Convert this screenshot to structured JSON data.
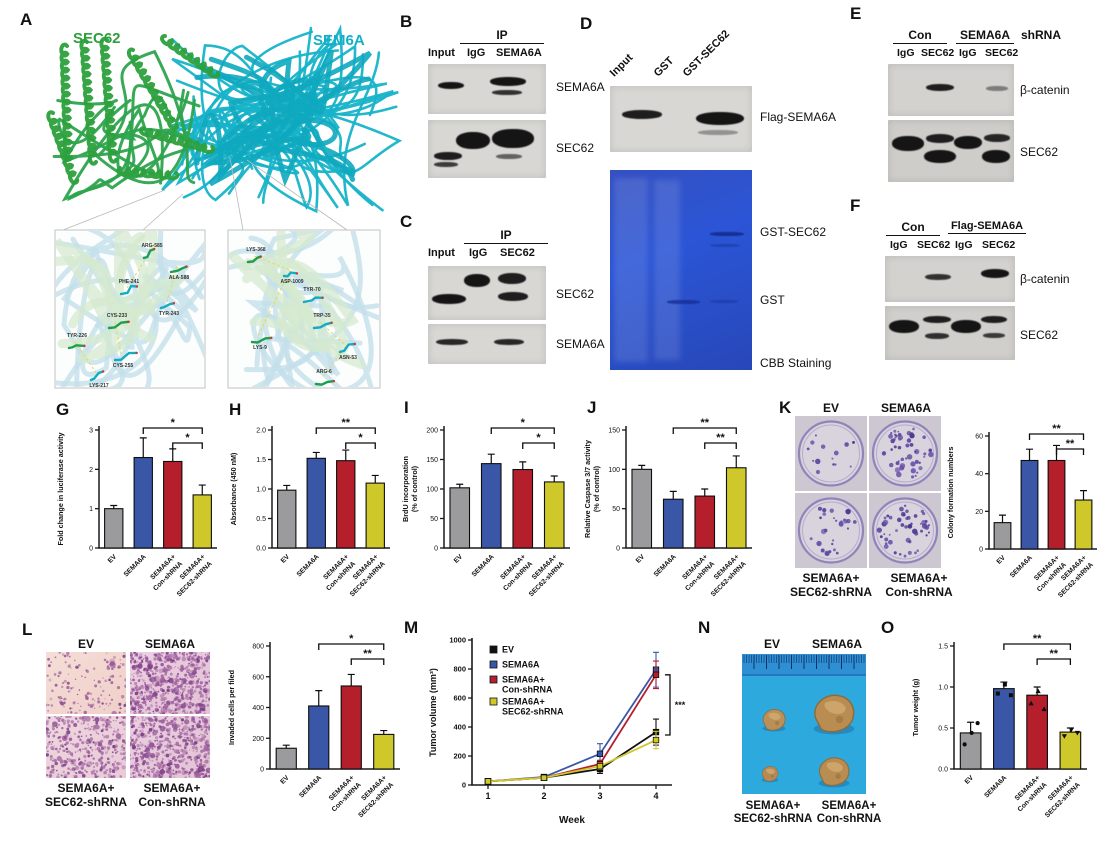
{
  "colors": {
    "bar_gray": "#9b9b9d",
    "bar_blue": "#3a57a7",
    "bar_red": "#b51f2c",
    "bar_yellow": "#cfc82a",
    "sec62_green": "#2ca03c",
    "sem6a_cyan": "#11b0c7",
    "gel_blue": "#2b55d6",
    "photo_blue": "#2da9de"
  },
  "panels": {
    "A": {
      "label": "A",
      "protein_left": "SEC62",
      "protein_right": "SEM6A",
      "inset_left_residues": [
        "ARG-585",
        "ALA-588",
        "PHE-241",
        "TYR-243",
        "CYS-233",
        "CYS-255",
        "TYR-226",
        "LYS-217"
      ],
      "inset_right_residues": [
        "LYS-368",
        "ASP-1009",
        "TYR-70",
        "LYS-9",
        "TRP-35",
        "ASN-53",
        "ARG-6"
      ]
    },
    "B": {
      "label": "B",
      "ip_header": "IP",
      "lanes": [
        "Input",
        "IgG",
        "SEMA6A"
      ],
      "blot_labels": [
        "SEMA6A",
        "SEC62"
      ]
    },
    "C": {
      "label": "C",
      "ip_header": "IP",
      "lanes": [
        "Input",
        "IgG",
        "SEC62"
      ],
      "blot_labels": [
        "SEC62",
        "SEMA6A"
      ]
    },
    "D": {
      "label": "D",
      "lanes": [
        "Input",
        "GST",
        "GST-SEC62"
      ],
      "blot_label": "Flag-SEMA6A",
      "gel_band_labels": [
        "GST-SEC62",
        "GST"
      ],
      "gel_caption": "CBB Staining"
    },
    "E": {
      "label": "E",
      "group_headers": [
        "Con",
        "SEMA6A"
      ],
      "shrna_label": "shRNA",
      "lanes": [
        "IgG",
        "SEC62",
        "IgG",
        "SEC62"
      ],
      "blot_labels": [
        "β-catenin",
        "SEC62"
      ]
    },
    "F": {
      "label": "F",
      "group_headers": [
        "Con",
        "Flag-SEMA6A"
      ],
      "lanes": [
        "IgG",
        "SEC62",
        "IgG",
        "SEC62"
      ],
      "blot_labels": [
        "β-catenin",
        "SEC62"
      ]
    },
    "G": {
      "label": "G"
    },
    "H": {
      "label": "H"
    },
    "I": {
      "label": "I"
    },
    "J": {
      "label": "J"
    },
    "K": {
      "label": "K",
      "image_labels_top": [
        "EV",
        "SEMA6A"
      ],
      "image_labels_bottom": [
        "SEMA6A+\nSEC62-shRNA",
        "SEMA6A+\nCon-shRNA"
      ],
      "colony_dot_counts": [
        14,
        50,
        28,
        48
      ]
    },
    "L": {
      "label": "L",
      "image_labels_top": [
        "EV",
        "SEMA6A"
      ],
      "image_labels_bottom": [
        "SEMA6A+\nSEC62-shRNA",
        "SEMA6A+\nCon-shRNA"
      ],
      "invasion_densities": [
        150,
        650,
        420,
        600
      ]
    },
    "M": {
      "label": "M"
    },
    "N": {
      "label": "N",
      "image_labels_top": [
        "EV",
        "SEMA6A"
      ],
      "image_labels_bottom": [
        "SEMA6A+\nSEC62-shRNA",
        "SEMA6A+\nCon-shRNA"
      ]
    },
    "O": {
      "label": "O"
    }
  },
  "chart_data": [
    {
      "id": "G",
      "type": "bar",
      "ylabel": "Fold change in luciferase activity",
      "categories": [
        "EV",
        "SEMA6A",
        "SEMA6A+\nCon-shRNA",
        "SEMA6A+\nSEC62-shRNA"
      ],
      "values": [
        1.0,
        2.3,
        2.2,
        1.35
      ],
      "errors": [
        0.08,
        0.5,
        0.32,
        0.25
      ],
      "ylim": [
        0,
        3
      ],
      "yticks": [
        "0",
        "1",
        "2",
        "3"
      ],
      "sig": [
        {
          "from": 1,
          "to": 3,
          "label": "*"
        },
        {
          "from": 2,
          "to": 3,
          "label": "*"
        }
      ]
    },
    {
      "id": "H",
      "type": "bar",
      "ylabel": "Absorbance (450 nM)",
      "categories": [
        "EV",
        "SEMA6A",
        "SEMA6A+\nCon-shRNA",
        "SEMA6A+\nSEC62-shRNA"
      ],
      "values": [
        0.98,
        1.52,
        1.48,
        1.1
      ],
      "errors": [
        0.08,
        0.1,
        0.18,
        0.13
      ],
      "ylim": [
        0,
        2
      ],
      "yticks": [
        "0.0",
        "0.5",
        "1.0",
        "1.5",
        "2.0"
      ],
      "sig": [
        {
          "from": 1,
          "to": 3,
          "label": "**"
        },
        {
          "from": 2,
          "to": 3,
          "label": "*"
        }
      ]
    },
    {
      "id": "I",
      "type": "bar",
      "ylabel": "BrdU incorporation\n(% of control)",
      "categories": [
        "EV",
        "SEMA6A",
        "SEMA6A+\nCon-shRNA",
        "SEMA6A+\nSEC62-shRNA"
      ],
      "values": [
        102,
        143,
        133,
        112
      ],
      "errors": [
        6,
        16,
        13,
        10
      ],
      "ylim": [
        0,
        200
      ],
      "yticks": [
        "0",
        "50",
        "100",
        "150",
        "200"
      ],
      "sig": [
        {
          "from": 1,
          "to": 3,
          "label": "*"
        },
        {
          "from": 2,
          "to": 3,
          "label": "*"
        }
      ]
    },
    {
      "id": "J",
      "type": "bar",
      "ylabel": "Relative Caspase 3/7 activity\n(% of control)",
      "categories": [
        "EV",
        "SEMA6A",
        "SEMA6A+\nCon-shRNA",
        "SEMA6A+\nSEC62-shRNA"
      ],
      "values": [
        100,
        62,
        66,
        102
      ],
      "errors": [
        5,
        10,
        9,
        15
      ],
      "ylim": [
        0,
        150
      ],
      "yticks": [
        "0",
        "50",
        "100",
        "150"
      ],
      "sig": [
        {
          "from": 1,
          "to": 3,
          "label": "**"
        },
        {
          "from": 2,
          "to": 3,
          "label": "**"
        }
      ]
    },
    {
      "id": "K",
      "type": "bar",
      "ylabel": "Colony formation numbers",
      "categories": [
        "EV",
        "SEMA6A",
        "SEMA6A+\nCon-shRNA",
        "SEMA6A+\nSEC62-shRNA"
      ],
      "values": [
        14,
        47,
        47,
        26
      ],
      "errors": [
        4,
        6,
        8,
        5
      ],
      "ylim": [
        0,
        60
      ],
      "yticks": [
        "0",
        "20",
        "40",
        "60"
      ],
      "sig": [
        {
          "from": 1,
          "to": 3,
          "label": "**"
        },
        {
          "from": 2,
          "to": 3,
          "label": "**"
        }
      ]
    },
    {
      "id": "L",
      "type": "bar",
      "ylabel": "Invaded cells per filed",
      "categories": [
        "EV",
        "SEMA6A",
        "SEMA6A+\nCon-shRNA",
        "SEMA6A+\nSEC62-shRNA"
      ],
      "values": [
        135,
        410,
        540,
        225
      ],
      "errors": [
        20,
        100,
        75,
        25
      ],
      "ylim": [
        0,
        800
      ],
      "yticks": [
        "0",
        "200",
        "400",
        "600",
        "800"
      ],
      "sig": [
        {
          "from": 1,
          "to": 3,
          "label": "*"
        },
        {
          "from": 2,
          "to": 3,
          "label": "**"
        }
      ]
    },
    {
      "id": "M",
      "type": "line",
      "xlabel": "Week",
      "ylabel": "Tumor volume (mm³)",
      "x": [
        1,
        2,
        3,
        4
      ],
      "ylim": [
        0,
        1000
      ],
      "yticks": [
        "0",
        "200",
        "400",
        "600",
        "800",
        "1000"
      ],
      "series": [
        {
          "name": "EV",
          "color": "#111111",
          "values": [
            25,
            50,
            110,
            365
          ],
          "errors": [
            10,
            12,
            30,
            90
          ]
        },
        {
          "name": "SEMA6A",
          "color": "#3a57a7",
          "values": [
            25,
            55,
            215,
            795
          ],
          "errors": [
            8,
            12,
            70,
            120
          ]
        },
        {
          "name": "SEMA6A+\nCon-shRNA",
          "color": "#b51f2c",
          "values": [
            25,
            50,
            145,
            760
          ],
          "errors": [
            8,
            10,
            25,
            95
          ]
        },
        {
          "name": "SEMA6A+\nSEC62-shRNA",
          "color": "#cfc82a",
          "values": [
            25,
            50,
            130,
            310
          ],
          "errors": [
            8,
            10,
            20,
            60
          ]
        }
      ],
      "sig_label": "***"
    },
    {
      "id": "O",
      "type": "bar",
      "ylabel": "Tumor weight (g)",
      "categories": [
        "EV",
        "SEMA6A",
        "SEMA6A+\nCon-shRNA",
        "SEMA6A+\nSEC62-shRNA"
      ],
      "values": [
        0.44,
        0.98,
        0.9,
        0.45
      ],
      "errors": [
        0.13,
        0.08,
        0.1,
        0.05
      ],
      "points": [
        [
          0.3,
          0.44,
          0.56
        ],
        [
          0.92,
          1.03,
          0.9
        ],
        [
          0.8,
          0.95,
          0.73
        ],
        [
          0.4,
          0.48,
          0.44
        ]
      ],
      "ylim": [
        0,
        1.5
      ],
      "yticks": [
        "0.0",
        "0.5",
        "1.0",
        "1.5"
      ],
      "sig": [
        {
          "from": 1,
          "to": 3,
          "label": "**"
        },
        {
          "from": 2,
          "to": 3,
          "label": "**"
        }
      ]
    }
  ]
}
